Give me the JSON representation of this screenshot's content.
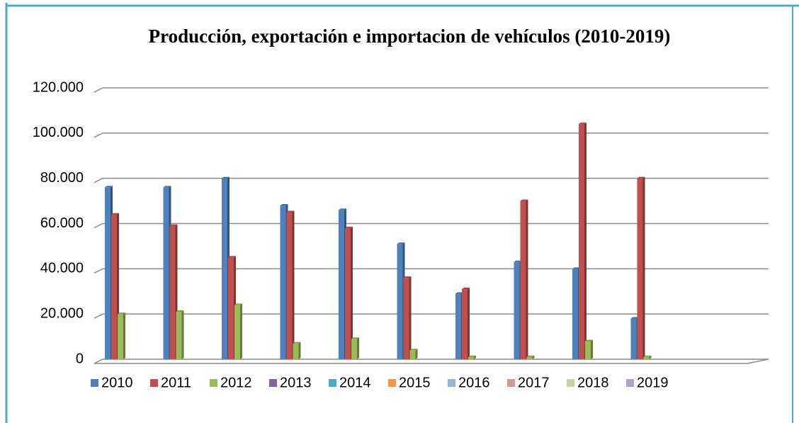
{
  "chart_data": {
    "type": "bar",
    "title": "Producción, exportación e importacion de vehículos (2010-2019)",
    "categories": [
      null,
      null,
      null,
      null,
      null,
      null,
      null,
      null,
      null,
      null
    ],
    "series": [
      {
        "name": "2010",
        "color": "#4f81bd",
        "values": [
          76000,
          76000,
          80000,
          68000,
          66000,
          51000,
          29000,
          43000,
          40000,
          18000
        ]
      },
      {
        "name": "2011",
        "color": "#c0504d",
        "values": [
          64000,
          59000,
          45000,
          65000,
          58000,
          36000,
          31000,
          70000,
          104000,
          80000
        ]
      },
      {
        "name": "2012",
        "color": "#9bbb59",
        "values": [
          20000,
          21000,
          24000,
          7000,
          9000,
          4000,
          1000,
          1000,
          8000,
          1000
        ]
      },
      {
        "name": "2013",
        "color": "#8064a2",
        "values": [
          null,
          null,
          null,
          null,
          null,
          null,
          null,
          null,
          null,
          null
        ]
      },
      {
        "name": "2014",
        "color": "#4bacc6",
        "values": [
          null,
          null,
          null,
          null,
          null,
          null,
          null,
          null,
          null,
          null
        ]
      },
      {
        "name": "2015",
        "color": "#f79646",
        "values": [
          null,
          null,
          null,
          null,
          null,
          null,
          null,
          null,
          null,
          null
        ]
      },
      {
        "name": "2016",
        "color": "#95b3d7",
        "values": [
          null,
          null,
          null,
          null,
          null,
          null,
          null,
          null,
          null,
          null
        ]
      },
      {
        "name": "2017",
        "color": "#d99694",
        "values": [
          null,
          null,
          null,
          null,
          null,
          null,
          null,
          null,
          null,
          null
        ]
      },
      {
        "name": "2018",
        "color": "#c3d69b",
        "values": [
          null,
          null,
          null,
          null,
          null,
          null,
          null,
          null,
          null,
          null
        ]
      },
      {
        "name": "2019",
        "color": "#b3a2c7",
        "values": [
          null,
          null,
          null,
          null,
          null,
          null,
          null,
          null,
          null,
          null
        ]
      }
    ],
    "ylim": [
      0,
      120000
    ],
    "yticks": [
      0,
      {
        "value": 20000,
        "label": "20.000"
      },
      {
        "value": 40000,
        "label": "40.000"
      },
      {
        "value": 60000,
        "label": "60.000"
      },
      {
        "value": 80000,
        "label": "80.000"
      },
      {
        "value": 100000,
        "label": "100.000"
      },
      {
        "value": 120000,
        "label": "120.000"
      }
    ],
    "grid": true,
    "legend": "bottom"
  }
}
